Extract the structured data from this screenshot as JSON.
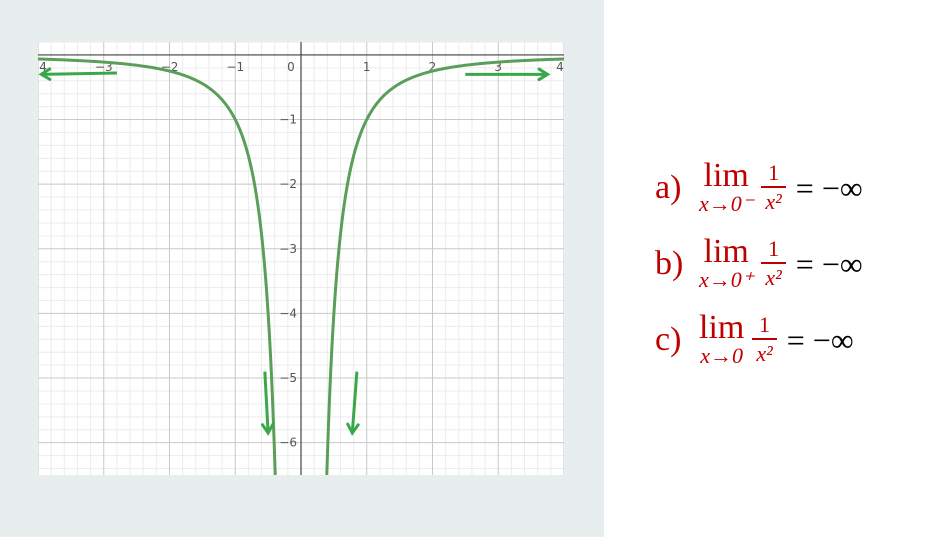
{
  "chart_data": {
    "type": "line",
    "function": "y = -1/x^2",
    "xlim": [
      -4,
      4
    ],
    "ylim": [
      -6.5,
      0.2
    ],
    "x_ticks": [
      "-4",
      "-3",
      "-2",
      "-1",
      "0",
      "1",
      "2",
      "3",
      "4"
    ],
    "y_ticks": [
      "-1",
      "-2",
      "-3",
      "-4",
      "-5",
      "-6"
    ],
    "grid": true,
    "series": [
      {
        "color": "#5a9e5a"
      }
    ],
    "annotations": [
      {
        "type": "arrow",
        "direction": "left"
      },
      {
        "type": "arrow",
        "direction": "right"
      },
      {
        "type": "arrow",
        "direction": "down"
      },
      {
        "type": "arrow",
        "direction": "down"
      }
    ],
    "arrow_color": "#3aa84a"
  },
  "limits": [
    {
      "label": "a)",
      "lim": "lim",
      "sub": "x→0⁻",
      "num": "1",
      "den": "x²",
      "rhs": "= −∞"
    },
    {
      "label": "b)",
      "lim": "lim",
      "sub": "x→0⁺",
      "num": "1",
      "den": "x²",
      "rhs": "= −∞"
    },
    {
      "label": "c)",
      "lim": "lim",
      "sub": "x→0",
      "num": "1",
      "den": "x²",
      "rhs": "= −∞"
    }
  ],
  "colors": {
    "limit_text": "#c00000",
    "panel_bg": "#e8edee"
  }
}
